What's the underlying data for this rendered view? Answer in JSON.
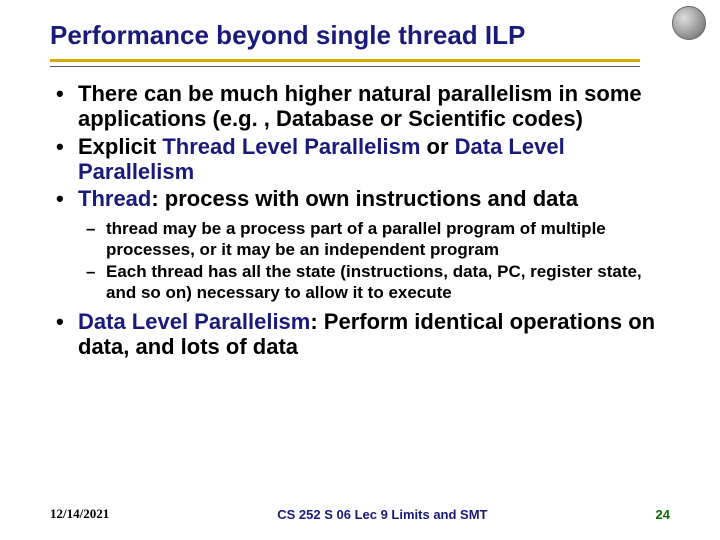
{
  "colors": {
    "title_text": "#1a1a7a",
    "title_underline": "#d9a800",
    "subline": "#555555",
    "body_text": "#000000",
    "highlight": "#1a1a7a",
    "page_number": "#0a6b0a",
    "background": "#ffffff"
  },
  "title": "Performance beyond single thread ILP",
  "bullets": {
    "b1": "There can be much higher natural parallelism in some applications (e.g. , Database or Scientific codes)",
    "b2_pre": "Explicit ",
    "b2_hl1": "Thread Level Parallelism",
    "b2_mid": " or ",
    "b2_hl2": "Data Level Parallelism",
    "b3_hl": "Thread",
    "b3_rest": ": process with own instructions and data",
    "b4_hl": "Data Level Parallelism",
    "b4_rest": ": Perform identical operations on data, and lots of data"
  },
  "sub_bullets": {
    "s1": "thread may be a process part of a parallel program of multiple processes, or it may be an independent program",
    "s2": "Each thread has all the state (instructions, data, PC, register state, and so on) necessary to allow it to execute"
  },
  "footer": {
    "date": "12/14/2021",
    "course": "CS 252 S 06 Lec 9 Limits and SMT",
    "page": "24"
  },
  "typography": {
    "title_fontsize": 26,
    "bullet_fontsize": 22,
    "sub_fontsize": 17,
    "footer_fontsize": 13
  }
}
